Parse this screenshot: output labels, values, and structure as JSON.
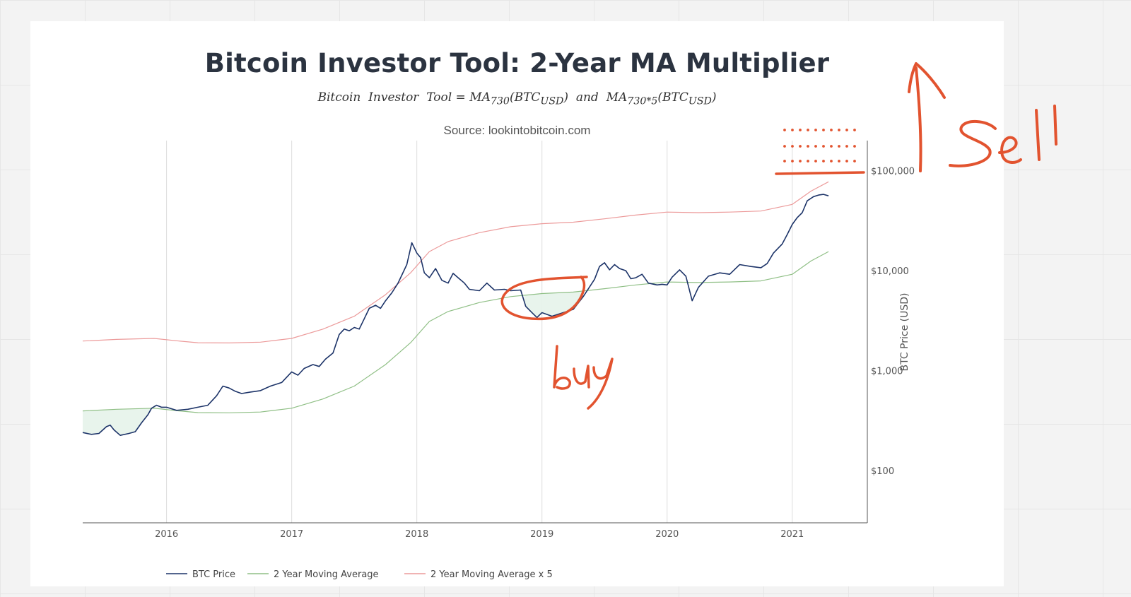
{
  "chart_data": {
    "type": "line",
    "title": "Bitcoin Investor Tool: 2-Year MA Multiplier",
    "formula": "Bitcoin Investor Tool = MA730(BTCUSD) and MA730*5(BTCUSD)",
    "source": "Source: lookintobitcoin.com",
    "ylabel": "BTC Price (USD)",
    "yscale": "log",
    "ylim": [
      30,
      200000
    ],
    "xlim": [
      2015.33,
      2021.6
    ],
    "x_ticks": [
      "2016",
      "2017",
      "2018",
      "2019",
      "2020",
      "2021"
    ],
    "y_ticks": [
      {
        "value": 100,
        "label": "$100"
      },
      {
        "value": 1000,
        "label": "$1,000"
      },
      {
        "value": 10000,
        "label": "$10,000"
      },
      {
        "value": 100000,
        "label": "$100,000"
      }
    ],
    "legend_position": "bottom",
    "grid": "vertical",
    "series": [
      {
        "name": "BTC Price",
        "color": "#1c3368",
        "points": [
          [
            2015.33,
            240
          ],
          [
            2015.4,
            230
          ],
          [
            2015.46,
            235
          ],
          [
            2015.52,
            275
          ],
          [
            2015.55,
            285
          ],
          [
            2015.58,
            255
          ],
          [
            2015.63,
            225
          ],
          [
            2015.7,
            235
          ],
          [
            2015.75,
            245
          ],
          [
            2015.8,
            300
          ],
          [
            2015.85,
            360
          ],
          [
            2015.88,
            420
          ],
          [
            2015.92,
            450
          ],
          [
            2015.96,
            430
          ],
          [
            2016.0,
            430
          ],
          [
            2016.08,
            400
          ],
          [
            2016.17,
            410
          ],
          [
            2016.25,
            430
          ],
          [
            2016.33,
            450
          ],
          [
            2016.4,
            560
          ],
          [
            2016.45,
            700
          ],
          [
            2016.5,
            670
          ],
          [
            2016.55,
            620
          ],
          [
            2016.6,
            590
          ],
          [
            2016.67,
            610
          ],
          [
            2016.75,
            630
          ],
          [
            2016.83,
            700
          ],
          [
            2016.92,
            760
          ],
          [
            2017.0,
            970
          ],
          [
            2017.05,
            900
          ],
          [
            2017.1,
            1050
          ],
          [
            2017.17,
            1150
          ],
          [
            2017.22,
            1100
          ],
          [
            2017.27,
            1300
          ],
          [
            2017.33,
            1500
          ],
          [
            2017.38,
            2300
          ],
          [
            2017.42,
            2600
          ],
          [
            2017.46,
            2500
          ],
          [
            2017.5,
            2700
          ],
          [
            2017.54,
            2600
          ],
          [
            2017.58,
            3300
          ],
          [
            2017.62,
            4200
          ],
          [
            2017.67,
            4500
          ],
          [
            2017.71,
            4200
          ],
          [
            2017.75,
            5000
          ],
          [
            2017.8,
            6000
          ],
          [
            2017.85,
            7500
          ],
          [
            2017.88,
            9000
          ],
          [
            2017.92,
            11500
          ],
          [
            2017.96,
            19000
          ],
          [
            2018.0,
            15000
          ],
          [
            2018.03,
            13500
          ],
          [
            2018.06,
            9500
          ],
          [
            2018.1,
            8500
          ],
          [
            2018.15,
            10500
          ],
          [
            2018.2,
            8000
          ],
          [
            2018.25,
            7500
          ],
          [
            2018.29,
            9400
          ],
          [
            2018.33,
            8500
          ],
          [
            2018.38,
            7500
          ],
          [
            2018.42,
            6500
          ],
          [
            2018.5,
            6300
          ],
          [
            2018.56,
            7500
          ],
          [
            2018.62,
            6400
          ],
          [
            2018.7,
            6500
          ],
          [
            2018.75,
            6300
          ],
          [
            2018.83,
            6400
          ],
          [
            2018.87,
            4400
          ],
          [
            2018.92,
            3800
          ],
          [
            2018.96,
            3400
          ],
          [
            2019.0,
            3800
          ],
          [
            2019.08,
            3500
          ],
          [
            2019.17,
            3800
          ],
          [
            2019.25,
            4100
          ],
          [
            2019.33,
            5500
          ],
          [
            2019.42,
            8200
          ],
          [
            2019.46,
            11000
          ],
          [
            2019.5,
            12000
          ],
          [
            2019.54,
            10200
          ],
          [
            2019.58,
            11500
          ],
          [
            2019.62,
            10500
          ],
          [
            2019.67,
            10000
          ],
          [
            2019.71,
            8300
          ],
          [
            2019.75,
            8500
          ],
          [
            2019.8,
            9200
          ],
          [
            2019.85,
            7500
          ],
          [
            2019.92,
            7200
          ],
          [
            2019.96,
            7300
          ],
          [
            2020.0,
            7200
          ],
          [
            2020.04,
            8600
          ],
          [
            2020.1,
            10200
          ],
          [
            2020.15,
            8800
          ],
          [
            2020.2,
            5000
          ],
          [
            2020.25,
            6800
          ],
          [
            2020.33,
            8800
          ],
          [
            2020.42,
            9500
          ],
          [
            2020.5,
            9200
          ],
          [
            2020.58,
            11500
          ],
          [
            2020.67,
            11000
          ],
          [
            2020.75,
            10700
          ],
          [
            2020.8,
            11800
          ],
          [
            2020.85,
            15000
          ],
          [
            2020.92,
            18500
          ],
          [
            2020.96,
            23000
          ],
          [
            2021.0,
            29000
          ],
          [
            2021.04,
            34000
          ],
          [
            2021.08,
            38000
          ],
          [
            2021.12,
            50000
          ],
          [
            2021.17,
            55000
          ],
          [
            2021.21,
            57000
          ],
          [
            2021.25,
            58000
          ],
          [
            2021.29,
            56000
          ]
        ]
      },
      {
        "name": "2 Year Moving Average",
        "color": "#8fbf85",
        "points": [
          [
            2015.33,
            395
          ],
          [
            2015.6,
            410
          ],
          [
            2015.9,
            420
          ],
          [
            2016.1,
            395
          ],
          [
            2016.25,
            380
          ],
          [
            2016.5,
            378
          ],
          [
            2016.75,
            385
          ],
          [
            2017.0,
            420
          ],
          [
            2017.25,
            520
          ],
          [
            2017.5,
            700
          ],
          [
            2017.75,
            1150
          ],
          [
            2017.95,
            1900
          ],
          [
            2018.1,
            3100
          ],
          [
            2018.25,
            3900
          ],
          [
            2018.5,
            4800
          ],
          [
            2018.75,
            5500
          ],
          [
            2019.0,
            5900
          ],
          [
            2019.25,
            6100
          ],
          [
            2019.5,
            6600
          ],
          [
            2019.75,
            7200
          ],
          [
            2020.0,
            7700
          ],
          [
            2020.25,
            7600
          ],
          [
            2020.5,
            7700
          ],
          [
            2020.75,
            7900
          ],
          [
            2021.0,
            9200
          ],
          [
            2021.15,
            12500
          ],
          [
            2021.29,
            15500
          ]
        ]
      },
      {
        "name": "2 Year Moving Average x 5",
        "color": "#ec9a9a",
        "points": [
          [
            2015.33,
            1975
          ],
          [
            2015.6,
            2050
          ],
          [
            2015.9,
            2100
          ],
          [
            2016.1,
            1975
          ],
          [
            2016.25,
            1900
          ],
          [
            2016.5,
            1890
          ],
          [
            2016.75,
            1925
          ],
          [
            2017.0,
            2100
          ],
          [
            2017.25,
            2600
          ],
          [
            2017.5,
            3500
          ],
          [
            2017.75,
            5750
          ],
          [
            2017.95,
            9500
          ],
          [
            2018.1,
            15500
          ],
          [
            2018.25,
            19500
          ],
          [
            2018.5,
            24000
          ],
          [
            2018.75,
            27500
          ],
          [
            2019.0,
            29500
          ],
          [
            2019.25,
            30500
          ],
          [
            2019.5,
            33000
          ],
          [
            2019.75,
            36000
          ],
          [
            2020.0,
            38500
          ],
          [
            2020.25,
            38000
          ],
          [
            2020.5,
            38500
          ],
          [
            2020.75,
            39500
          ],
          [
            2021.0,
            46000
          ],
          [
            2021.15,
            62500
          ],
          [
            2021.29,
            77500
          ]
        ]
      }
    ]
  },
  "annotations": {
    "buy_label": "buy",
    "sell_label": "Sell",
    "color": "#e2532f"
  }
}
